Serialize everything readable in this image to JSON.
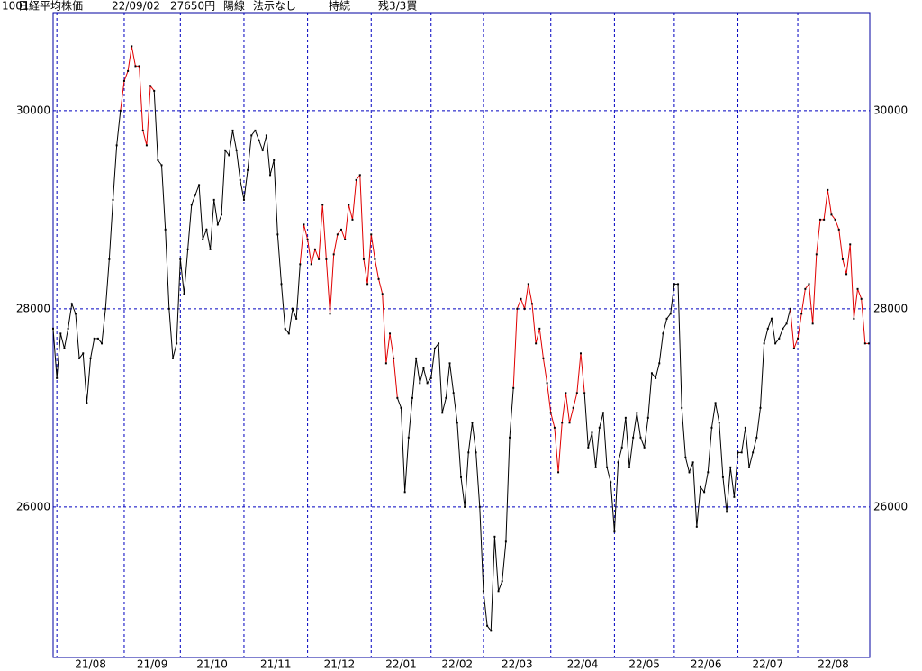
{
  "header": {
    "code": "1001",
    "name": "日経平均株価",
    "date": "22/09/02",
    "price": "27650円",
    "candle": "陽線",
    "rule": "法示なし",
    "status": "持続",
    "position": "残3/3買"
  },
  "chart_data": {
    "type": "line",
    "values": [
      27800,
      27300,
      27750,
      27600,
      27800,
      28050,
      27950,
      27500,
      27550,
      27050,
      27500,
      27700,
      27700,
      27650,
      28000,
      28500,
      29100,
      29650,
      30000,
      30300,
      30400,
      30650,
      30450,
      30450,
      29800,
      29650,
      30250,
      30200,
      29500,
      29450,
      28800,
      28000,
      27500,
      27650,
      28500,
      28150,
      28600,
      29050,
      29150,
      29250,
      28700,
      28800,
      28600,
      29100,
      28850,
      28950,
      29600,
      29550,
      29800,
      29600,
      29300,
      29100,
      29400,
      29750,
      29800,
      29700,
      29600,
      29750,
      29350,
      29500,
      28750,
      28250,
      27800,
      27750,
      28000,
      27900,
      28450,
      28850,
      28700,
      28450,
      28600,
      28500,
      29050,
      28500,
      27950,
      28550,
      28750,
      28800,
      28700,
      29050,
      28900,
      29300,
      29350,
      28500,
      28250,
      28750,
      28500,
      28300,
      28150,
      27450,
      27750,
      27500,
      27100,
      27000,
      26150,
      26700,
      27100,
      27500,
      27250,
      27400,
      27250,
      27300,
      27600,
      27650,
      26950,
      27100,
      27450,
      27150,
      26850,
      26300,
      26000,
      26550,
      26850,
      26550,
      26000,
      25150,
      24800,
      24750,
      25700,
      25150,
      25250,
      25650,
      26700,
      27200,
      28000,
      28100,
      28000,
      28250,
      28050,
      27650,
      27800,
      27500,
      27250,
      26950,
      26800,
      26350,
      26850,
      27150,
      26850,
      27000,
      27150,
      27550,
      27150,
      26600,
      26750,
      26400,
      26800,
      26950,
      26400,
      26250,
      25750,
      26450,
      26600,
      26900,
      26400,
      26700,
      26950,
      26700,
      26600,
      26900,
      27350,
      27300,
      27450,
      27750,
      27900,
      27950,
      28250,
      28250,
      27000,
      26500,
      26350,
      26450,
      25800,
      26200,
      26150,
      26350,
      26800,
      27050,
      26850,
      26300,
      25950,
      26400,
      26100,
      26550,
      26550,
      26800,
      26400,
      26550,
      26700,
      27000,
      27650,
      27800,
      27900,
      27650,
      27700,
      27800,
      27850,
      28000,
      27600,
      27700,
      27950,
      28200,
      28250,
      27850,
      28550,
      28900,
      28900,
      29200,
      28950,
      28900,
      28800,
      28500,
      28350,
      28650,
      27900,
      28200,
      28100,
      27650,
      27650
    ],
    "color": "#000000",
    "segments": [
      {
        "from": 18,
        "to": 27,
        "color": "#e00000"
      },
      {
        "from": 66,
        "to": 92,
        "color": "#e00000"
      },
      {
        "from": 123,
        "to": 142,
        "color": "#e00000"
      },
      {
        "from": 197,
        "to": 218,
        "color": "#e00000"
      }
    ],
    "xlim": [
      0,
      218
    ],
    "xticks": [
      {
        "value": 1,
        "label": "21/08"
      },
      {
        "value": 19,
        "label": "21/09"
      },
      {
        "value": 34,
        "label": "21/10"
      },
      {
        "value": 51,
        "label": "21/11"
      },
      {
        "value": 68,
        "label": "21/12"
      },
      {
        "value": 85,
        "label": "22/01"
      },
      {
        "value": 101,
        "label": "22/02"
      },
      {
        "value": 115,
        "label": "22/03"
      },
      {
        "value": 133,
        "label": "22/04"
      },
      {
        "value": 150,
        "label": "22/05"
      },
      {
        "value": 166,
        "label": "22/06"
      },
      {
        "value": 183,
        "label": "22/07"
      },
      {
        "value": 199,
        "label": "22/08"
      }
    ],
    "ylim": [
      24480,
      30990
    ],
    "yticks": [
      26000,
      28000,
      30000
    ],
    "grid": true
  }
}
